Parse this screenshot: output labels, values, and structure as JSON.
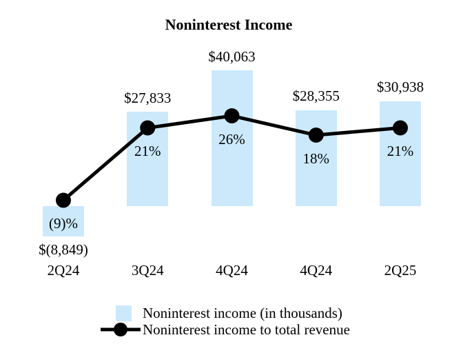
{
  "chart_data": {
    "type": "bar",
    "combo": "bar+line",
    "title": "Noninterest Income",
    "categories": [
      "2Q24",
      "3Q24",
      "4Q24",
      "4Q24",
      "2Q25"
    ],
    "series": [
      {
        "name": "Noninterest income (in thousands)",
        "type": "bar",
        "values": [
          -8849,
          27833,
          40063,
          28355,
          30938
        ],
        "labels": [
          "$(8,849)",
          "$27,833",
          "$40,063",
          "$28,355",
          "$30,938"
        ],
        "color": "#cbe9fb"
      },
      {
        "name": "Noninterest income to total revenue",
        "type": "line",
        "values": [
          -9,
          21,
          26,
          18,
          21
        ],
        "labels": [
          "(9)%",
          "21%",
          "26%",
          "18%",
          "21%"
        ],
        "color": "#000000"
      }
    ],
    "legend": [
      {
        "label": "Noninterest income (in thousands)",
        "marker": "square",
        "color": "#cbe9fb"
      },
      {
        "label": "Noninterest income to total revenue",
        "marker": "line-dot",
        "color": "#000000"
      }
    ],
    "legend_position": "bottom",
    "grid": false,
    "axes_lines": "none",
    "value_axis_units": "thousands"
  }
}
